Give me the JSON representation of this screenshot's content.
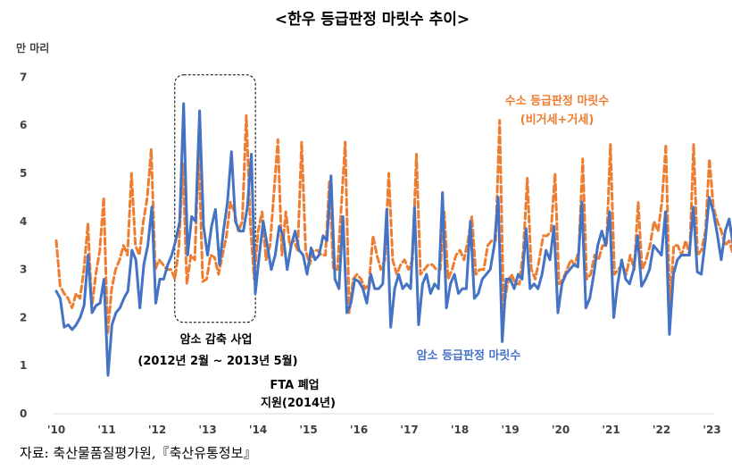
{
  "chart_data": {
    "type": "line",
    "title": "<한우 등급판정 마릿수 추이>",
    "ylabel": "만 마리",
    "ylim": [
      0,
      7
    ],
    "yticks": [
      0,
      1,
      2,
      3,
      4,
      5,
      6,
      7
    ],
    "x_start": 2010,
    "x_end": 2023.5,
    "x_tick_years": [
      2010,
      2011,
      2012,
      2013,
      2014,
      2015,
      2016,
      2017,
      2018,
      2019,
      2020,
      2021,
      2022,
      2023
    ],
    "x_tick_labels": [
      "'10",
      "'11",
      "'12",
      "'13",
      "'14",
      "'15",
      "'16",
      "'17",
      "'18",
      "'19",
      "'20",
      "'21",
      "'22",
      "'23"
    ],
    "grid": false,
    "legend": "inline labels",
    "series": [
      {
        "name": "암소 등급판정 마릿수",
        "color": "#4472C4",
        "style": "solid",
        "values": [
          2.55,
          2.4,
          1.8,
          1.85,
          1.75,
          1.85,
          2.0,
          2.25,
          3.3,
          2.1,
          2.25,
          2.3,
          2.8,
          0.8,
          1.85,
          2.1,
          2.2,
          2.4,
          2.55,
          3.4,
          3.2,
          2.2,
          3.1,
          3.5,
          4.3,
          2.3,
          2.8,
          2.8,
          3.1,
          3.3,
          3.6,
          4.0,
          6.45,
          3.3,
          4.1,
          4.0,
          6.3,
          3.9,
          3.3,
          3.9,
          4.25,
          3.1,
          3.8,
          4.4,
          5.45,
          4.0,
          3.8,
          3.8,
          4.3,
          5.4,
          2.5,
          3.3,
          4.0,
          3.5,
          3.0,
          3.3,
          3.9,
          3.7,
          3.0,
          3.5,
          3.8,
          3.4,
          3.3,
          2.9,
          3.45,
          3.2,
          3.3,
          3.7,
          3.6,
          4.95,
          2.8,
          2.6,
          4.1,
          2.1,
          2.3,
          2.8,
          2.75,
          2.6,
          2.3,
          2.9,
          2.6,
          2.6,
          2.7,
          4.25,
          1.8,
          2.6,
          2.9,
          2.6,
          2.7,
          2.6,
          4.3,
          1.85,
          2.7,
          2.9,
          2.5,
          2.7,
          2.6,
          4.6,
          2.2,
          2.7,
          2.9,
          2.5,
          2.6,
          2.6,
          4.0,
          2.4,
          2.5,
          2.8,
          2.9,
          3.0,
          3.5,
          4.5,
          1.5,
          2.8,
          2.8,
          2.6,
          2.9,
          2.8,
          3.85,
          2.6,
          2.7,
          2.6,
          2.9,
          3.4,
          3.2,
          3.9,
          2.1,
          2.7,
          2.9,
          3.0,
          3.1,
          3.05,
          4.4,
          2.2,
          2.4,
          2.9,
          3.5,
          3.8,
          3.5,
          4.2,
          2.0,
          2.7,
          3.2,
          2.8,
          2.7,
          3.0,
          3.7,
          2.65,
          2.8,
          3.0,
          3.5,
          3.4,
          3.3,
          4.2,
          1.65,
          2.9,
          3.2,
          3.3,
          3.3,
          3.3,
          4.3,
          2.95,
          2.9,
          3.6,
          4.5,
          4.2,
          3.75,
          3.2,
          3.8,
          4.05,
          3.5,
          4.1
        ]
      },
      {
        "name": "수소 등급판정 마릿수",
        "sublabel": "(비거세+거세)",
        "color": "#ED7D31",
        "style": "dashed",
        "values": [
          3.6,
          2.65,
          2.5,
          2.4,
          2.2,
          2.5,
          2.4,
          3.0,
          3.95,
          2.2,
          2.9,
          3.4,
          4.5,
          1.65,
          2.6,
          3.0,
          3.2,
          3.5,
          3.3,
          5.0,
          3.5,
          3.3,
          4.0,
          4.5,
          5.5,
          3.0,
          3.2,
          3.1,
          3.0,
          3.0,
          2.8,
          3.5,
          5.2,
          2.7,
          3.3,
          3.2,
          5.5,
          2.75,
          2.8,
          3.3,
          3.25,
          2.9,
          3.3,
          3.7,
          4.4,
          4.2,
          3.8,
          4.0,
          6.2,
          4.0,
          2.8,
          3.8,
          4.2,
          3.2,
          3.5,
          4.6,
          5.7,
          3.3,
          4.2,
          3.5,
          3.6,
          3.4,
          5.65,
          3.4,
          3.1,
          3.4,
          3.4,
          3.3,
          3.3,
          4.85,
          3.0,
          3.0,
          4.3,
          5.65,
          2.1,
          2.8,
          2.9,
          2.8,
          2.6,
          2.7,
          3.7,
          3.3,
          3.0,
          3.2,
          5.0,
          3.2,
          2.9,
          3.1,
          3.2,
          3.0,
          3.2,
          5.4,
          2.9,
          3.0,
          3.1,
          3.1,
          3.0,
          3.0,
          4.2,
          2.8,
          3.0,
          3.3,
          3.4,
          3.2,
          3.6,
          4.1,
          2.9,
          3.0,
          3.0,
          3.5,
          3.6,
          3.6,
          6.1,
          2.2,
          2.7,
          2.9,
          2.7,
          2.7,
          3.4,
          4.9,
          3.0,
          2.8,
          3.2,
          3.7,
          3.7,
          3.8,
          5.0,
          2.7,
          2.8,
          3.0,
          3.2,
          3.1,
          3.4,
          5.3,
          2.8,
          2.9,
          3.3,
          3.2,
          3.5,
          3.5,
          5.6,
          2.9,
          3.0,
          3.1,
          2.9,
          3.3,
          3.0,
          4.4,
          3.0,
          3.2,
          3.5,
          4.0,
          3.8,
          4.4,
          5.6,
          2.2,
          3.5,
          3.5,
          3.3,
          3.6,
          3.3,
          5.6,
          3.3,
          3.4,
          3.8,
          5.3,
          4.3,
          4.0,
          3.8,
          3.5,
          3.6,
          3.3,
          3.6
        ]
      }
    ],
    "annotations": {
      "highlight_box": {
        "x_from": 2012.35,
        "x_to": 2013.95,
        "y_from": 1.9,
        "y_to": 7.05
      },
      "box_label_1": "암소 감축 사업",
      "box_label_2": "(2012년 2월 ~ 2013년 5월)",
      "fta_label_1": "FTA 폐업",
      "fta_label_2": "지원(2014년)"
    }
  },
  "source": "자료: 축산물품질평가원,『축산유통정보』"
}
